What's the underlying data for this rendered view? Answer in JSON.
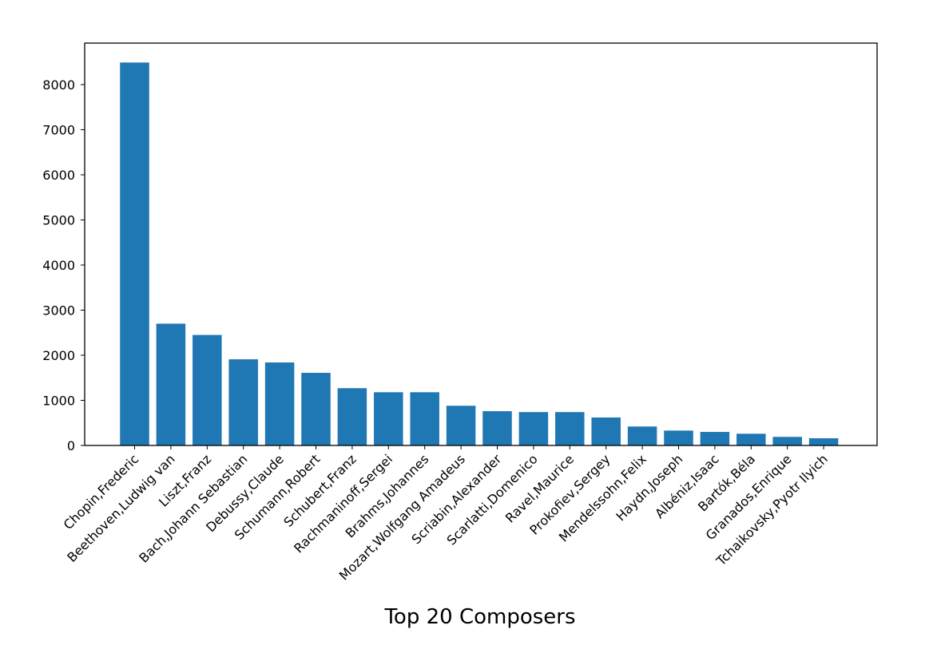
{
  "chart_data": {
    "type": "bar",
    "title": "",
    "xlabel": "Top 20 Composers",
    "ylabel": "",
    "categories": [
      "Chopin,Frederic",
      "Beethoven,Ludwig van",
      "Liszt,Franz",
      "Bach,Johann Sebastian",
      "Debussy,Claude",
      "Schumann,Robert",
      "Schubert,Franz",
      "Rachmaninoff,Sergei",
      "Brahms,Johannes",
      "Mozart,Wolfgang Amadeus",
      "Scriabin,Alexander",
      "Scarlatti,Domenico",
      "Ravel,Maurice",
      "Prokofiev,Sergey",
      "Mendelssohn,Felix",
      "Haydn,Joseph",
      "Albéniz,Isaac",
      "Bartók,Béla",
      "Granados,Enrique",
      "Tchaikovsky,Pyotr Ilyich"
    ],
    "values": [
      8490,
      2700,
      2450,
      1910,
      1840,
      1610,
      1270,
      1180,
      1180,
      880,
      760,
      740,
      740,
      620,
      420,
      330,
      300,
      260,
      190,
      160
    ],
    "ylim": [
      0,
      8920
    ],
    "yticks": [
      0,
      1000,
      2000,
      3000,
      4000,
      5000,
      6000,
      7000,
      8000
    ],
    "grid": false,
    "bar_color": "#1f77b4"
  }
}
